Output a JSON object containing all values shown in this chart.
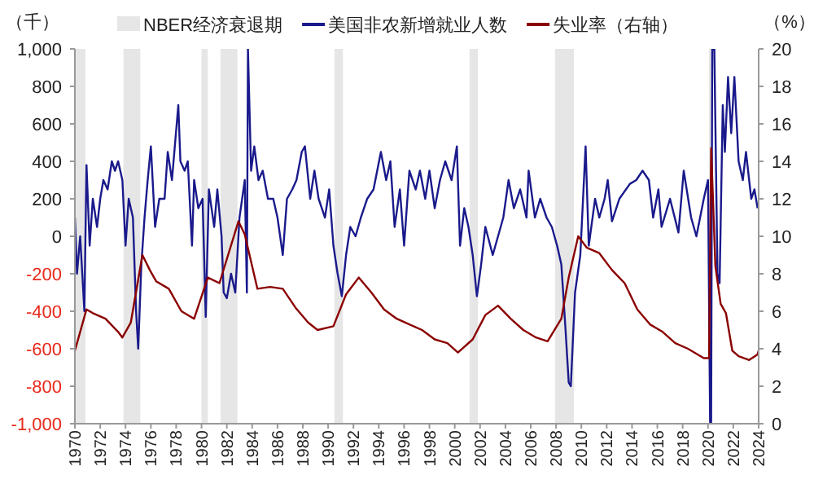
{
  "chart_data": {
    "type": "line",
    "ylabel": "（千）",
    "y2label": "（%）",
    "xlim": [
      "1970-01",
      "2024-01"
    ],
    "xticks": [
      "1970",
      "1972",
      "1974",
      "1976",
      "1978",
      "1980",
      "1982",
      "1984",
      "1986",
      "1988",
      "1990",
      "1992",
      "1994",
      "1996",
      "1998",
      "2000",
      "2002",
      "2004",
      "2006",
      "2008",
      "2010",
      "2012",
      "2014",
      "2016",
      "2018",
      "2020",
      "2022",
      "2024"
    ],
    "ylim": [
      -1000,
      1000
    ],
    "yticks": [
      {
        "value": -1000,
        "label": "-1,000"
      },
      -800,
      -600,
      -400,
      -200,
      0,
      200,
      400,
      600,
      800,
      {
        "value": 1000,
        "label": "1,000"
      }
    ],
    "y2lim": [
      0,
      20
    ],
    "y2ticks": [
      0,
      2,
      4,
      6,
      8,
      10,
      12,
      14,
      16,
      18,
      20
    ],
    "grid": false,
    "legend": "top",
    "bands": [
      {
        "axis": "x",
        "from": "1969-12",
        "to": "1970-11",
        "label": "NBER经济衰退期",
        "color": "#e6e6e6"
      },
      {
        "axis": "x",
        "from": "1973-11",
        "to": "1975-03",
        "color": "#e6e6e6"
      },
      {
        "axis": "x",
        "from": "1980-01",
        "to": "1980-07",
        "color": "#e6e6e6"
      },
      {
        "axis": "x",
        "from": "1981-07",
        "to": "1982-11",
        "color": "#e6e6e6"
      },
      {
        "axis": "x",
        "from": "1990-07",
        "to": "1991-03",
        "color": "#e6e6e6"
      },
      {
        "axis": "x",
        "from": "2001-03",
        "to": "2001-11",
        "color": "#e6e6e6"
      },
      {
        "axis": "x",
        "from": "2007-12",
        "to": "2009-06",
        "color": "#e6e6e6"
      },
      {
        "axis": "x",
        "from": "2020-02",
        "to": "2020-04",
        "color": "#e6e6e6"
      }
    ],
    "series": [
      {
        "name": "美国非农新增就业人数",
        "color": "#1a1a8c",
        "x": [
          "1970-01",
          "1970-03",
          "1970-06",
          "1970-10",
          "1970-12",
          "1971-03",
          "1971-06",
          "1971-10",
          "1972-01",
          "1972-04",
          "1972-08",
          "1972-12",
          "1973-03",
          "1973-06",
          "1973-10",
          "1974-01",
          "1974-04",
          "1974-08",
          "1974-11",
          "1975-01",
          "1975-04",
          "1975-07",
          "1975-10",
          "1976-01",
          "1976-05",
          "1976-09",
          "1977-02",
          "1977-05",
          "1977-09",
          "1978-03",
          "1978-05",
          "1978-09",
          "1978-12",
          "1979-04",
          "1979-06",
          "1979-10",
          "1980-02",
          "1980-05",
          "1980-08",
          "1981-01",
          "1981-04",
          "1981-08",
          "1981-10",
          "1982-01",
          "1982-05",
          "1982-09",
          "1983-01",
          "1983-06",
          "1983-08",
          "1983-09",
          "1983-12",
          "1984-03",
          "1984-07",
          "1984-11",
          "1985-04",
          "1985-09",
          "1986-01",
          "1986-06",
          "1986-10",
          "1987-03",
          "1987-07",
          "1987-12",
          "1988-03",
          "1988-08",
          "1988-12",
          "1989-04",
          "1989-10",
          "1990-02",
          "1990-06",
          "1990-10",
          "1991-02",
          "1991-06",
          "1991-10",
          "1992-03",
          "1992-08",
          "1993-02",
          "1993-08",
          "1994-03",
          "1994-08",
          "1994-12",
          "1995-04",
          "1995-09",
          "1996-01",
          "1996-06",
          "1996-12",
          "1997-04",
          "1997-09",
          "1998-01",
          "1998-06",
          "1998-11",
          "1999-04",
          "1999-10",
          "2000-03",
          "2000-06",
          "2000-10",
          "2001-02",
          "2001-06",
          "2001-10",
          "2002-02",
          "2002-06",
          "2003-01",
          "2003-06",
          "2003-11",
          "2004-04",
          "2004-09",
          "2005-03",
          "2005-09",
          "2005-11",
          "2006-05",
          "2006-10",
          "2007-04",
          "2007-09",
          "2008-02",
          "2008-06",
          "2008-10",
          "2009-01",
          "2009-03",
          "2009-07",
          "2009-12",
          "2010-05",
          "2010-08",
          "2011-02",
          "2011-06",
          "2011-11",
          "2012-02",
          "2012-06",
          "2013-01",
          "2013-11",
          "2014-05",
          "2014-11",
          "2015-05",
          "2015-09",
          "2016-02",
          "2016-05",
          "2017-01",
          "2017-09",
          "2018-02",
          "2018-09",
          "2019-02",
          "2019-09",
          "2020-01",
          "2020-03",
          "2020-04",
          "2020-05",
          "2020-07",
          "2020-10",
          "2020-12",
          "2021-03",
          "2021-05",
          "2021-08",
          "2021-11",
          "2022-02",
          "2022-06",
          "2022-10",
          "2023-01",
          "2023-06",
          "2023-09",
          "2023-12"
        ],
        "values": [
          100,
          -200,
          0,
          -400,
          380,
          -50,
          200,
          50,
          200,
          300,
          250,
          400,
          350,
          400,
          300,
          -50,
          200,
          100,
          -400,
          -600,
          -150,
          100,
          300,
          480,
          50,
          200,
          200,
          450,
          300,
          700,
          400,
          350,
          400,
          -50,
          300,
          150,
          200,
          -430,
          250,
          50,
          250,
          0,
          -300,
          -330,
          -200,
          -300,
          100,
          300,
          -300,
          1000,
          350,
          480,
          300,
          350,
          200,
          200,
          100,
          -100,
          200,
          250,
          300,
          450,
          480,
          200,
          350,
          200,
          100,
          250,
          -50,
          -200,
          -320,
          -100,
          50,
          0,
          100,
          200,
          250,
          450,
          300,
          400,
          50,
          250,
          -50,
          350,
          250,
          350,
          200,
          350,
          150,
          300,
          400,
          300,
          480,
          -50,
          150,
          50,
          -100,
          -320,
          -150,
          50,
          -100,
          0,
          100,
          300,
          150,
          250,
          100,
          350,
          100,
          200,
          100,
          50,
          -50,
          -150,
          -500,
          -780,
          -800,
          -300,
          -100,
          480,
          -50,
          200,
          100,
          200,
          300,
          80,
          200,
          280,
          300,
          350,
          300,
          100,
          250,
          50,
          200,
          20,
          350,
          100,
          0,
          200,
          300,
          -1000,
          -1000,
          1000,
          1000,
          -200,
          -250,
          700,
          450,
          850,
          550,
          850,
          400,
          300,
          450,
          200,
          250,
          150
        ]
      },
      {
        "name": "失业率（右轴）",
        "axis": "y2",
        "color": "#8b0000",
        "x": [
          "1970-01",
          "1970-12",
          "1971-06",
          "1972-06",
          "1973-06",
          "1973-10",
          "1974-06",
          "1975-05",
          "1975-12",
          "1976-06",
          "1977-06",
          "1978-06",
          "1979-06",
          "1980-07",
          "1981-06",
          "1982-12",
          "1983-06",
          "1984-06",
          "1985-06",
          "1986-06",
          "1987-06",
          "1988-06",
          "1989-03",
          "1990-06",
          "1991-06",
          "1992-06",
          "1993-06",
          "1994-06",
          "1995-06",
          "1996-06",
          "1997-06",
          "1998-06",
          "1999-06",
          "2000-04",
          "2001-06",
          "2002-06",
          "2003-06",
          "2004-06",
          "2005-06",
          "2006-06",
          "2007-05",
          "2008-06",
          "2009-01",
          "2009-10",
          "2010-06",
          "2011-06",
          "2012-06",
          "2013-06",
          "2014-06",
          "2015-06",
          "2016-06",
          "2017-06",
          "2018-06",
          "2019-09",
          "2020-02",
          "2020-04",
          "2020-08",
          "2021-01",
          "2021-06",
          "2021-12",
          "2022-06",
          "2023-04",
          "2023-12",
          "2024-01"
        ],
        "values": [
          3.9,
          6.1,
          5.9,
          5.6,
          4.9,
          4.6,
          5.4,
          9.0,
          8.2,
          7.6,
          7.2,
          6.0,
          5.6,
          7.8,
          7.5,
          10.8,
          10.1,
          7.2,
          7.3,
          7.2,
          6.2,
          5.4,
          5.0,
          5.2,
          6.9,
          7.8,
          7.0,
          6.1,
          5.6,
          5.3,
          5.0,
          4.5,
          4.3,
          3.8,
          4.5,
          5.8,
          6.3,
          5.6,
          5.0,
          4.6,
          4.4,
          5.6,
          7.8,
          10.0,
          9.4,
          9.1,
          8.2,
          7.5,
          6.1,
          5.3,
          4.9,
          4.3,
          4.0,
          3.5,
          3.5,
          14.7,
          8.4,
          6.4,
          5.9,
          3.9,
          3.6,
          3.4,
          3.7,
          3.9
        ]
      }
    ]
  }
}
